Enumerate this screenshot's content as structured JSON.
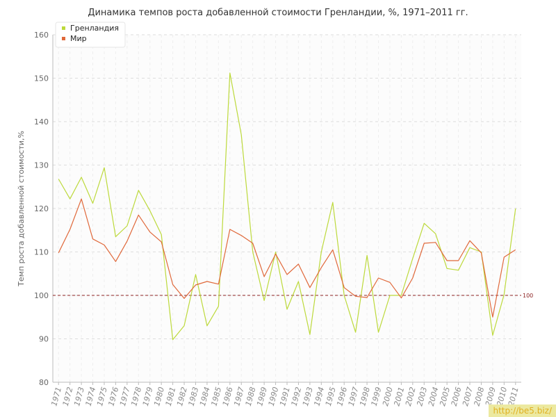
{
  "chart_data": {
    "type": "line",
    "title": "Динамика темпов роста добавленной стоимости Гренландии, %, 1971–2011 гг.",
    "xlabel": "",
    "ylabel": "Темп роста добавленной стоимости,%",
    "ylim": [
      80,
      160
    ],
    "yticks": [
      80,
      90,
      100,
      110,
      120,
      130,
      140,
      150,
      160
    ],
    "grid": true,
    "legend_position": "top-left",
    "x": [
      "1971",
      "1972",
      "1973",
      "1974",
      "1975",
      "1976",
      "1977",
      "1978",
      "1979",
      "1980",
      "1981",
      "1982",
      "1983",
      "1984",
      "1985",
      "1986",
      "1987",
      "1988",
      "1989",
      "1990",
      "1991",
      "1992",
      "1993",
      "1994",
      "1995",
      "1996",
      "1997",
      "1998",
      "1999",
      "2000",
      "2001",
      "2002",
      "2003",
      "2004",
      "2005",
      "2006",
      "2007",
      "2008",
      "2009",
      "2010",
      "2011"
    ],
    "series": [
      {
        "name": "Гренландия",
        "color": "#bcd93a",
        "values": [
          126.8,
          122.2,
          127.2,
          121.2,
          129.4,
          113.5,
          116.0,
          124.2,
          119.5,
          114.0,
          89.8,
          93.0,
          104.8,
          93.0,
          97.5,
          151.2,
          137.0,
          110.0,
          98.8,
          110.0,
          96.8,
          103.2,
          91.0,
          110.0,
          121.4,
          100.0,
          91.5,
          109.2,
          91.5,
          100.0,
          100.0,
          108.5,
          116.6,
          114.2,
          106.2,
          105.8,
          111.0,
          110.0,
          90.8,
          100.2,
          120.0
        ]
      },
      {
        "name": "Мир",
        "color": "#e0683a",
        "values": [
          109.8,
          115.2,
          122.2,
          113.0,
          111.6,
          107.8,
          112.5,
          118.5,
          114.6,
          112.3,
          102.5,
          99.3,
          102.4,
          103.2,
          102.6,
          115.2,
          113.8,
          112.0,
          104.3,
          109.5,
          104.8,
          107.2,
          101.8,
          106.4,
          110.5,
          101.8,
          99.8,
          99.5,
          104.0,
          103.0,
          99.4,
          104.0,
          112.0,
          112.2,
          108.0,
          108.0,
          112.6,
          109.8,
          95.0,
          108.8,
          110.5
        ]
      }
    ],
    "reference_line": {
      "value": 100,
      "label": "100",
      "color": "#8b2020"
    }
  },
  "watermark": "http://be5.biz/"
}
